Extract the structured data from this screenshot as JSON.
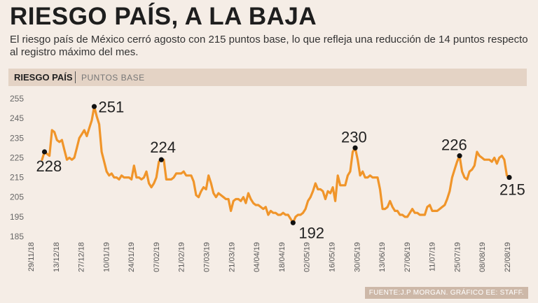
{
  "header": {
    "title": "RIESGO PAÍS, A LA BAJA",
    "subtitle": "El riesgo país de México cerró agosto con 215 puntos base, lo que refleja  una reducción de 14 puntos respecto al registro máximo del mes."
  },
  "chart_header": {
    "title": "RIESGO PAÍS",
    "unit": "PUNTOS BASE"
  },
  "source": "FUENTE:J.P MORGAN. GRÁFICO EE: STAFF.",
  "colors": {
    "line": "#f0952a",
    "marker": "#111111",
    "background": "#f5ede6",
    "band": "#e4d3c5"
  },
  "chart_data": {
    "type": "line",
    "ylim": [
      185,
      255
    ],
    "yticks": [
      185,
      195,
      205,
      215,
      225,
      235,
      245,
      255
    ],
    "grid": false,
    "xticks": [
      "29/11/18",
      "13/12/18",
      "27/12/18",
      "10/01/19",
      "24/01/19",
      "07/02/19",
      "21/02/19",
      "07/03/19",
      "21/03/19",
      "04/04/19",
      "18/04/19",
      "02/05/19",
      "16/05/19",
      "30/05/19",
      "13/06/19",
      "27/06/19",
      "11/07/19",
      "25/07/19",
      "08/08/19",
      "22/08/19"
    ],
    "series": [
      {
        "values": [
          224,
          228,
          227,
          226,
          239,
          238,
          234,
          233,
          234,
          229,
          224,
          225,
          224,
          225,
          230,
          235,
          237,
          239,
          236,
          240,
          244,
          251,
          246,
          242,
          228,
          223,
          218,
          216,
          217,
          215,
          215,
          214,
          216,
          215,
          215,
          215,
          214,
          221,
          215,
          215,
          214,
          215,
          218,
          212,
          210,
          212,
          215,
          223,
          224,
          224,
          214,
          214,
          214,
          215,
          217,
          217,
          217,
          218,
          216,
          216,
          216,
          213,
          206,
          205,
          208,
          210,
          209,
          216,
          212,
          207,
          205,
          207,
          206,
          205,
          204,
          204,
          198,
          203,
          204,
          204,
          203,
          205,
          202,
          207,
          204,
          202,
          201,
          201,
          200,
          199,
          200,
          196,
          198,
          197,
          197,
          196,
          196,
          197,
          196,
          196,
          194,
          192,
          195,
          196,
          196,
          197,
          199,
          203,
          205,
          208,
          212,
          209,
          209,
          208,
          204,
          208,
          207,
          210,
          203,
          216,
          211,
          211,
          211,
          216,
          218,
          228,
          230,
          224,
          216,
          218,
          215,
          215,
          216,
          215,
          215,
          215,
          209,
          199,
          199,
          200,
          203,
          200,
          198,
          198,
          196,
          196,
          195,
          195,
          197,
          199,
          197,
          197,
          196,
          196,
          196,
          200,
          201,
          198,
          198,
          198,
          199,
          200,
          201,
          204,
          208,
          215,
          219,
          223,
          226,
          218,
          215,
          214,
          218,
          219,
          221,
          228,
          226,
          225,
          224,
          224,
          224,
          223,
          225,
          222,
          225,
          226,
          224,
          216,
          215
        ]
      }
    ],
    "annotations": [
      {
        "label": "228",
        "index": 1,
        "value": 228
      },
      {
        "label": "251",
        "index": 21,
        "value": 251
      },
      {
        "label": "224",
        "index": 48,
        "value": 224
      },
      {
        "label": "192",
        "index": 101,
        "value": 192
      },
      {
        "label": "230",
        "index": 126,
        "value": 230
      },
      {
        "label": "226",
        "index": 168,
        "value": 226
      },
      {
        "label": "215",
        "index": 188,
        "value": 215
      }
    ]
  }
}
